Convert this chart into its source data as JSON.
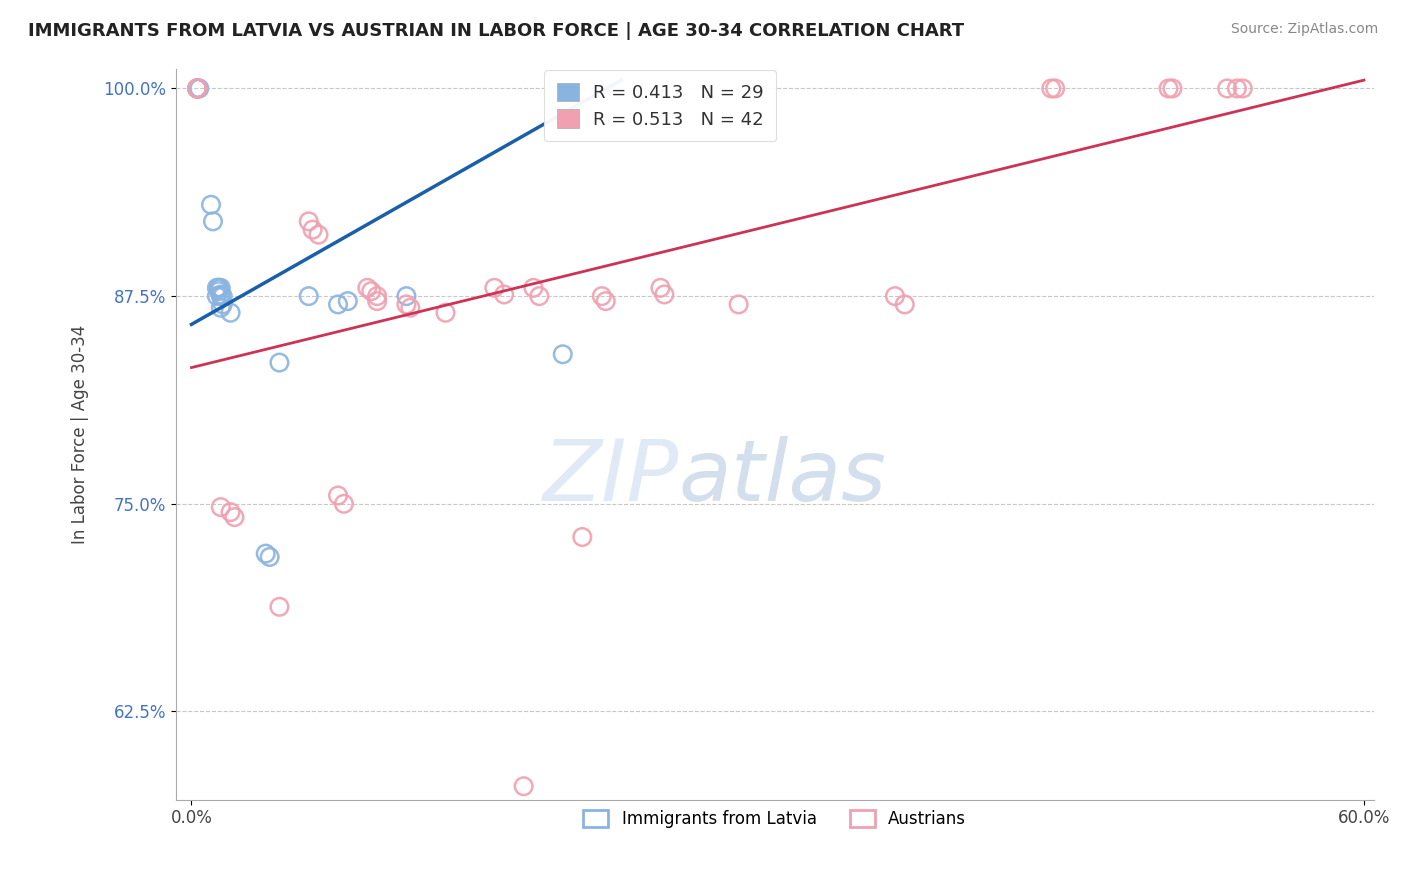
{
  "title": "IMMIGRANTS FROM LATVIA VS AUSTRIAN IN LABOR FORCE | AGE 30-34 CORRELATION CHART",
  "source": "Source: ZipAtlas.com",
  "ylabel": "In Labor Force | Age 30-34",
  "xlim": [
    -0.008,
    0.605
  ],
  "ylim": [
    0.572,
    1.012
  ],
  "xtick_labels": [
    "0.0%",
    "60.0%"
  ],
  "xtick_vals": [
    0.0,
    0.6
  ],
  "ytick_labels": [
    "62.5%",
    "75.0%",
    "87.5%",
    "100.0%"
  ],
  "ytick_vals": [
    0.625,
    0.75,
    0.875,
    1.0
  ],
  "legend_r_blue": "R = 0.413",
  "legend_n_blue": "N = 29",
  "legend_r_pink": "R = 0.513",
  "legend_n_pink": "N = 42",
  "legend_label_blue": "Immigrants from Latvia",
  "legend_label_pink": "Austrians",
  "color_blue": "#8ab4e0",
  "color_pink": "#f0a0b0",
  "color_trendline_blue": "#1a5faa",
  "color_trendline_pink": "#cc3355",
  "watermark_text": "ZIPatlas",
  "blue_x": [
    0.003,
    0.003,
    0.003,
    0.003,
    0.003,
    0.003,
    0.004,
    0.01,
    0.011,
    0.014,
    0.015,
    0.014,
    0.013,
    0.014,
    0.015,
    0.015,
    0.016,
    0.013,
    0.016,
    0.015,
    0.02,
    0.06,
    0.075,
    0.08,
    0.11,
    0.19,
    0.045,
    0.04,
    0.038
  ],
  "blue_y": [
    1.0,
    1.0,
    1.0,
    1.0,
    1.0,
    1.0,
    1.0,
    0.93,
    0.92,
    0.88,
    0.88,
    0.88,
    0.88,
    0.878,
    0.876,
    0.875,
    0.875,
    0.875,
    0.87,
    0.868,
    0.865,
    0.875,
    0.87,
    0.872,
    0.875,
    0.84,
    0.835,
    0.718,
    0.72
  ],
  "blue_trendline_x": [
    0.0,
    0.22
  ],
  "blue_trendline_y": [
    0.858,
    1.005
  ],
  "pink_x": [
    0.003,
    0.003,
    0.003,
    0.003,
    0.003,
    0.003,
    0.06,
    0.062,
    0.065,
    0.09,
    0.092,
    0.095,
    0.095,
    0.11,
    0.112,
    0.13,
    0.155,
    0.16,
    0.175,
    0.178,
    0.21,
    0.212,
    0.24,
    0.242,
    0.28,
    0.36,
    0.365,
    0.44,
    0.442,
    0.5,
    0.502,
    0.53,
    0.535,
    0.538,
    0.02,
    0.022,
    0.015,
    0.075,
    0.078,
    0.2,
    0.045,
    0.17
  ],
  "pink_y": [
    1.0,
    1.0,
    1.0,
    1.0,
    1.0,
    1.0,
    0.92,
    0.915,
    0.912,
    0.88,
    0.878,
    0.875,
    0.872,
    0.87,
    0.868,
    0.865,
    0.88,
    0.876,
    0.88,
    0.875,
    0.875,
    0.872,
    0.88,
    0.876,
    0.87,
    0.875,
    0.87,
    1.0,
    1.0,
    1.0,
    1.0,
    1.0,
    1.0,
    1.0,
    0.745,
    0.742,
    0.748,
    0.755,
    0.75,
    0.73,
    0.688,
    0.58
  ],
  "pink_trendline_x": [
    0.0,
    0.6
  ],
  "pink_trendline_y": [
    0.832,
    1.005
  ]
}
